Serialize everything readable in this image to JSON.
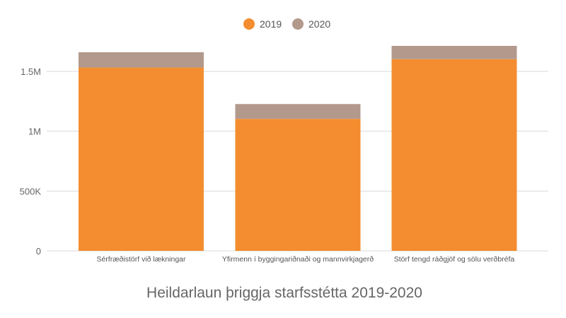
{
  "chart_data": {
    "type": "bar",
    "stacked": true,
    "title": "Heildarlaun þriggja starfsstétta 2019-2020",
    "xlabel": "",
    "ylabel": "",
    "ylim": [
      0,
      1750000
    ],
    "grid": true,
    "legend_position": "top",
    "y_ticks": [
      {
        "value": 0,
        "label": "0"
      },
      {
        "value": 500000,
        "label": "500K"
      },
      {
        "value": 1000000,
        "label": "1M"
      },
      {
        "value": 1500000,
        "label": "1.5M"
      }
    ],
    "categories": [
      "Sérfræðistörf við lækningar",
      "Yfirmenn í byggingariðnaði og mannvirkjagerð",
      "Störf tengd ráðgjöf og sölu verðbréfa"
    ],
    "series": [
      {
        "name": "2019",
        "color": "#f38d2f",
        "values": [
          1532000,
          1103000,
          1602000
        ]
      },
      {
        "name": "2020",
        "color": "#b2998c",
        "values": [
          128000,
          124000,
          111000
        ]
      }
    ]
  }
}
